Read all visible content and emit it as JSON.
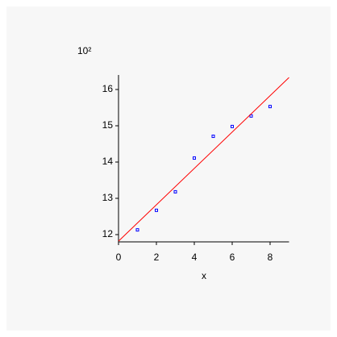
{
  "chart_data": {
    "type": "scatter",
    "y_multiplier": "10²",
    "xlabel": "x",
    "xlim": [
      0,
      9
    ],
    "xticks": [
      0,
      2,
      4,
      6,
      8
    ],
    "ylim": [
      11.8,
      16.4
    ],
    "yticks": [
      12,
      13,
      14,
      15,
      16
    ],
    "series": [
      {
        "mode": "markers",
        "color": "#0000ff",
        "x": [
          1,
          2,
          3,
          4,
          5,
          6,
          7,
          8
        ],
        "values": [
          12.13,
          12.67,
          13.18,
          14.11,
          14.71,
          14.98,
          15.27,
          15.53
        ]
      },
      {
        "mode": "line",
        "color": "#ff0000",
        "x": [
          0,
          9
        ],
        "values": [
          11.82,
          16.33
        ]
      }
    ]
  }
}
